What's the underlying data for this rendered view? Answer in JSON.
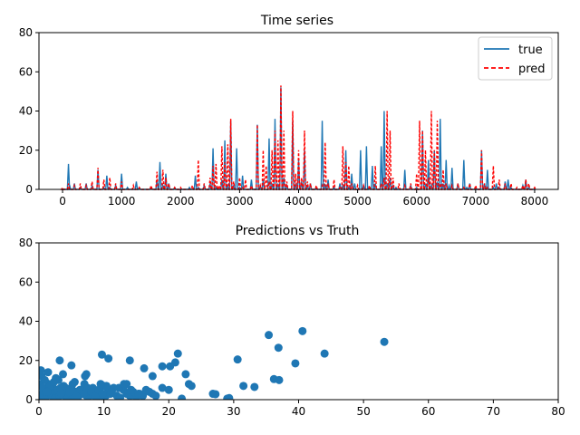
{
  "chart_data": [
    {
      "type": "line",
      "title": "Time series",
      "xlabel": "",
      "ylabel": "",
      "xlim": [
        -400,
        8400
      ],
      "ylim": [
        0,
        80
      ],
      "xticks": [
        0,
        1000,
        2000,
        3000,
        4000,
        5000,
        6000,
        7000,
        8000
      ],
      "yticks": [
        0,
        20,
        40,
        60,
        80
      ],
      "grid": false,
      "legend": "top-right",
      "series": [
        {
          "name": "true",
          "color": "#1f77b4",
          "style": "solid",
          "x": [
            0,
            80,
            100,
            120,
            200,
            300,
            400,
            500,
            600,
            700,
            750,
            800,
            900,
            950,
            1000,
            1100,
            1200,
            1250,
            1300,
            1500,
            1600,
            1650,
            1700,
            1750,
            1800,
            1900,
            2000,
            2150,
            2250,
            2300,
            2400,
            2500,
            2550,
            2600,
            2700,
            2750,
            2800,
            2850,
            2900,
            2950,
            3000,
            3050,
            3100,
            3200,
            3300,
            3350,
            3400,
            3500,
            3550,
            3600,
            3650,
            3700,
            3750,
            3800,
            3900,
            3950,
            4000,
            4050,
            4100,
            4150,
            4200,
            4300,
            4400,
            4450,
            4500,
            4600,
            4700,
            4750,
            4800,
            4850,
            4900,
            4950,
            5000,
            5050,
            5100,
            5150,
            5200,
            5250,
            5300,
            5400,
            5450,
            5500,
            5550,
            5600,
            5650,
            5700,
            5800,
            5900,
            6000,
            6100,
            6150,
            6200,
            6250,
            6300,
            6350,
            6400,
            6450,
            6500,
            6550,
            6600,
            6650,
            6700,
            6800,
            6850,
            6900,
            7000,
            7100,
            7150,
            7200,
            7300,
            7350,
            7400,
            7500,
            7550,
            7600,
            7700,
            7800,
            7850,
            7900,
            8000
          ],
          "values": [
            0,
            0,
            13,
            2,
            3,
            1,
            3,
            2,
            10,
            1,
            7,
            1,
            2,
            0,
            8,
            1,
            0,
            4,
            1,
            1,
            5,
            14,
            2,
            8,
            3,
            1,
            0,
            1,
            7,
            1,
            2,
            3,
            21,
            1,
            5,
            25,
            2,
            35,
            2,
            21,
            1,
            7,
            0,
            5,
            33,
            2,
            5,
            26,
            3,
            36,
            3,
            52,
            6,
            2,
            35,
            3,
            15,
            4,
            20,
            2,
            3,
            1,
            35,
            2,
            5,
            1,
            3,
            2,
            20,
            1,
            8,
            3,
            0,
            20,
            2,
            22,
            1,
            12,
            3,
            22,
            40,
            3,
            6,
            2,
            1,
            0,
            10,
            2,
            1,
            30,
            3,
            15,
            2,
            20,
            4,
            36,
            3,
            15,
            2,
            11,
            0,
            3,
            15,
            1,
            3,
            1,
            20,
            3,
            10,
            1,
            3,
            1,
            4,
            5,
            1,
            0,
            2,
            5,
            1,
            0
          ],
          "note_omit": ""
        },
        {
          "name": "pred",
          "color": "#ff0000",
          "style": "dashed",
          "x": [
            0,
            100,
            200,
            300,
            400,
            500,
            600,
            700,
            800,
            900,
            1000,
            1200,
            1300,
            1500,
            1600,
            1700,
            1750,
            1800,
            1900,
            2000,
            2200,
            2300,
            2400,
            2500,
            2550,
            2600,
            2650,
            2700,
            2750,
            2800,
            2850,
            2900,
            3000,
            3050,
            3100,
            3200,
            3300,
            3350,
            3400,
            3450,
            3500,
            3550,
            3600,
            3650,
            3700,
            3750,
            3800,
            3900,
            3950,
            4000,
            4050,
            4100,
            4150,
            4200,
            4300,
            4400,
            4450,
            4500,
            4600,
            4700,
            4750,
            4800,
            4850,
            4900,
            5000,
            5100,
            5200,
            5300,
            5400,
            5450,
            5500,
            5550,
            5600,
            5700,
            5800,
            5900,
            6000,
            6050,
            6100,
            6150,
            6200,
            6250,
            6300,
            6350,
            6400,
            6450,
            6500,
            6600,
            6700,
            6800,
            6900,
            7000,
            7100,
            7150,
            7200,
            7300,
            7400,
            7500,
            7600,
            7700,
            7800,
            7850,
            7900,
            8000
          ],
          "values": [
            1,
            3,
            2,
            3,
            2,
            4,
            11,
            5,
            6,
            3,
            4,
            2,
            1,
            2,
            9,
            10,
            6,
            3,
            1,
            1,
            2,
            15,
            3,
            6,
            12,
            13,
            2,
            22,
            14,
            23,
            36,
            4,
            6,
            1,
            5,
            2,
            33,
            2,
            20,
            12,
            4,
            20,
            30,
            25,
            53,
            30,
            4,
            40,
            8,
            20,
            6,
            30,
            4,
            3,
            2,
            2,
            24,
            3,
            5,
            1,
            22,
            14,
            12,
            3,
            2,
            2,
            2,
            12,
            3,
            6,
            40,
            30,
            6,
            3,
            2,
            3,
            8,
            35,
            30,
            20,
            6,
            40,
            20,
            35,
            3,
            10,
            3,
            2,
            3,
            1,
            3,
            2,
            20,
            3,
            1,
            12,
            5,
            3,
            3,
            1,
            2,
            5,
            3,
            1
          ]
        }
      ]
    },
    {
      "type": "scatter",
      "title": "Predictions vs Truth",
      "xlabel": "",
      "ylabel": "",
      "xlim": [
        0,
        80
      ],
      "ylim": [
        0,
        80
      ],
      "xticks": [
        0,
        10,
        20,
        30,
        40,
        50,
        60,
        70,
        80
      ],
      "yticks": [
        0,
        20,
        40,
        60,
        80
      ],
      "grid": false,
      "legend": "none",
      "series": [
        {
          "color": "#1f77b4",
          "x": [
            0.3,
            0.5,
            0.8,
            1,
            1.2,
            1.5,
            1.8,
            2,
            2.2,
            2.5,
            2.8,
            3,
            3.2,
            3.5,
            3.8,
            4,
            4.2,
            4.5,
            4.8,
            5,
            5.3,
            5.6,
            6,
            6.3,
            6.6,
            7,
            7.3,
            7.6,
            8,
            8.3,
            8.6,
            9,
            9.3,
            9.6,
            10,
            10.3,
            10.6,
            11,
            11.5,
            12,
            12.5,
            13,
            13.5,
            14,
            14.5,
            15,
            15.5,
            16,
            16.5,
            17,
            17.5,
            18,
            19,
            20,
            0.2,
            0.6,
            1.1,
            1.7,
            2.3,
            2.9,
            3.4,
            4.1,
            4.7,
            5.2,
            5.8,
            6.4,
            6.9,
            7.5,
            8.1,
            8.7,
            9.2,
            9.8,
            10.4,
            11.2,
            12.3,
            13.1,
            14.2,
            15.3,
            0.4,
            0.9,
            1.4,
            2.6,
            3.7,
            5.5,
            7.1,
            9.5,
            1.3,
            3.3,
            0.3,
            3.2,
            5,
            7.3,
            9.7,
            14,
            21.4,
            21,
            16.2,
            19,
            13.5,
            10.7,
            20.2,
            23.5,
            23.1,
            22,
            26.8,
            27.2,
            29,
            29.3,
            30.6,
            31.5,
            33.2,
            35.4,
            36.2,
            37,
            36.9,
            39.5,
            40.6,
            44,
            53.2,
            22.6,
            17.5
          ],
          "values": [
            2,
            3,
            1,
            5,
            2,
            8,
            3,
            2,
            6,
            1,
            4,
            10,
            2,
            3,
            7,
            2,
            5,
            1,
            3,
            6,
            2,
            4,
            1,
            5,
            3,
            8,
            2,
            1,
            4,
            6,
            2,
            3,
            5,
            1,
            7,
            2,
            4,
            3,
            6,
            2,
            1,
            5,
            3,
            2,
            4,
            1,
            3,
            2,
            5,
            4,
            3,
            2,
            6,
            5,
            8,
            6,
            4,
            7,
            9,
            5,
            3,
            6,
            4,
            8,
            2,
            5,
            3,
            6,
            4,
            2,
            5,
            3,
            7,
            4,
            6,
            8,
            5,
            3,
            12,
            10,
            14,
            11,
            13,
            9,
            12,
            8,
            4,
            6,
            15,
            20,
            17.5,
            13,
            23,
            20,
            23.5,
            19,
            16,
            17,
            8,
            21,
            17,
            7,
            8,
            0.5,
            3,
            2.8,
            0.5,
            0.8,
            20.5,
            7,
            6.5,
            33,
            10.5,
            10,
            26.5,
            18.5,
            35,
            23.5,
            29.5,
            13,
            12
          ]
        }
      ]
    }
  ]
}
